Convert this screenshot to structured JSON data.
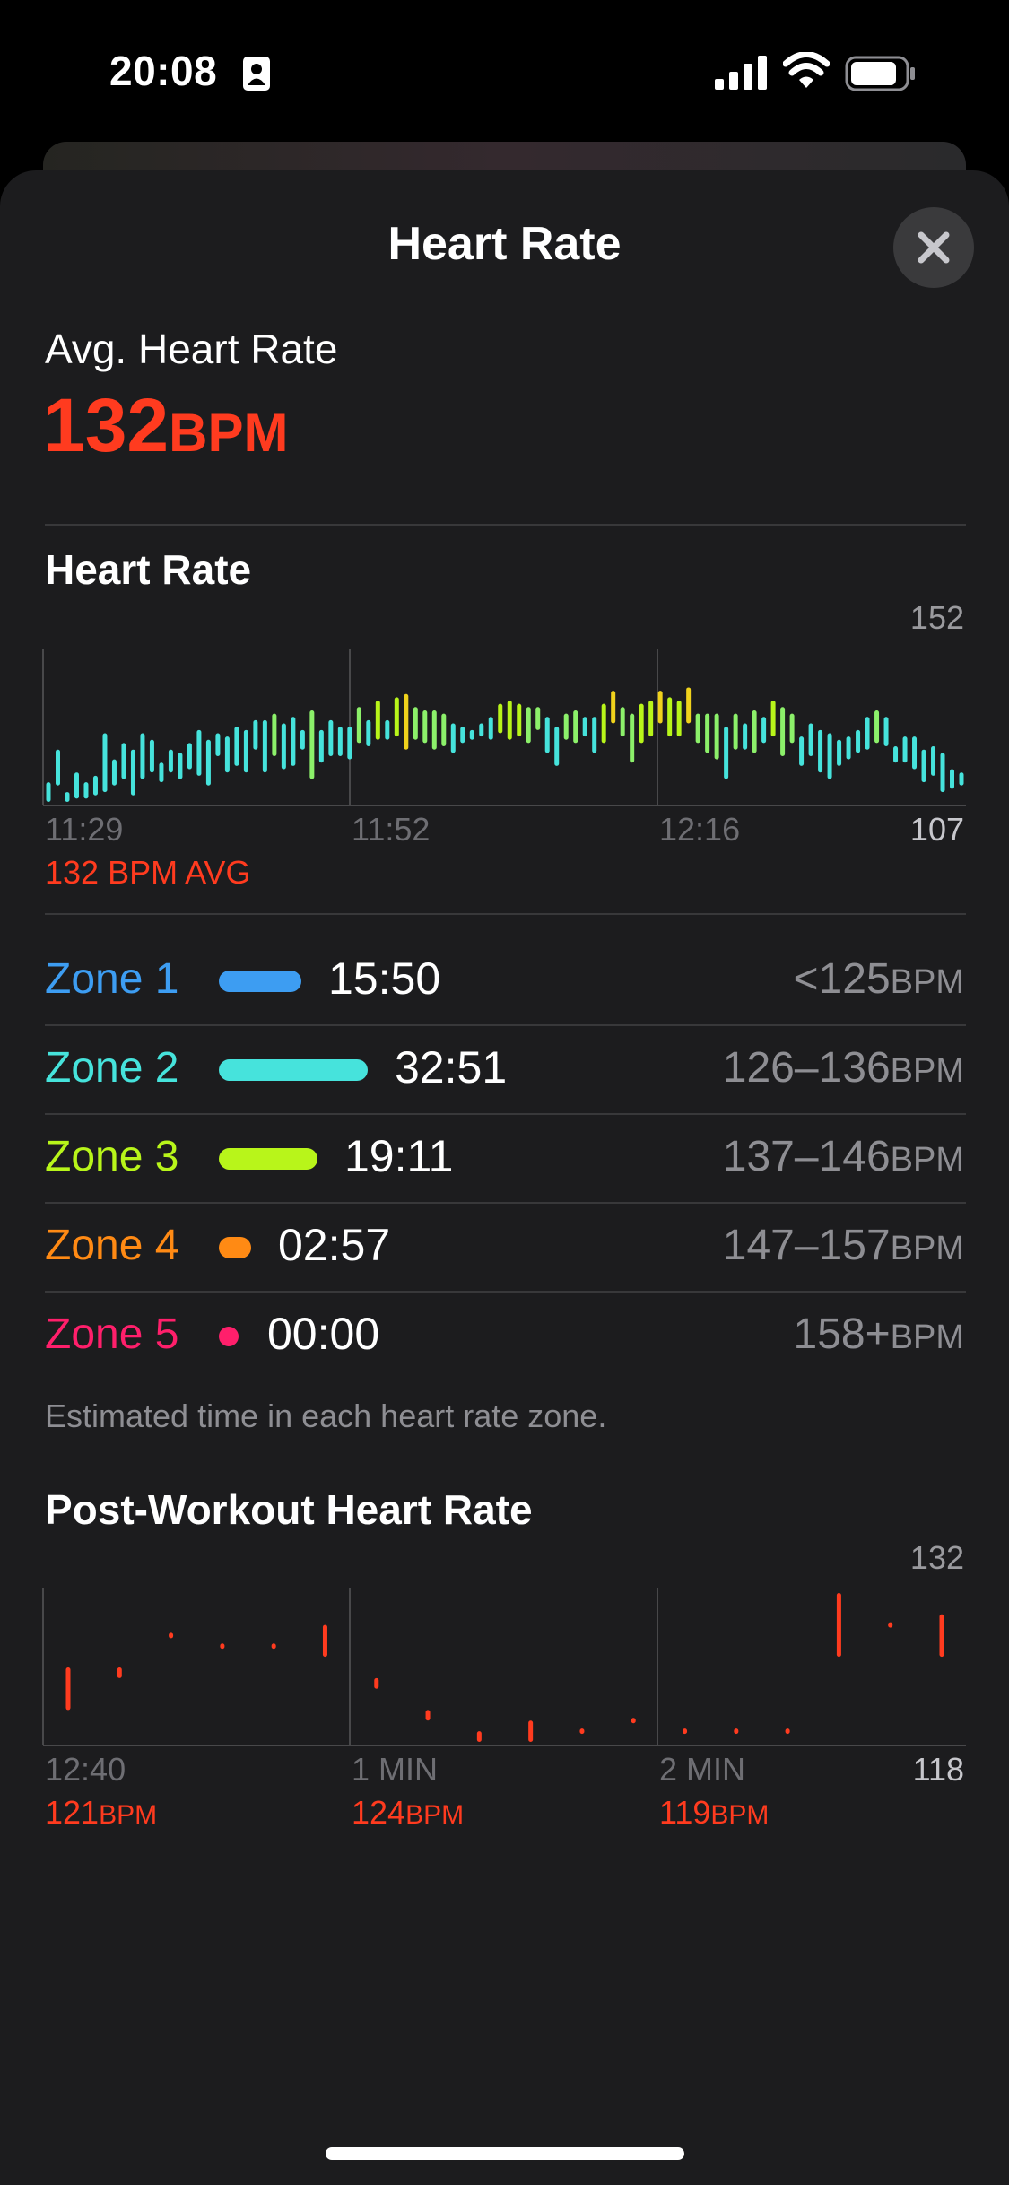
{
  "status_bar": {
    "time": "20:08"
  },
  "sheet": {
    "title": "Heart Rate"
  },
  "summary": {
    "label": "Avg. Heart Rate",
    "value": "132",
    "unit": "BPM"
  },
  "hr_chart": {
    "title": "Heart Rate",
    "y_max_label": "152",
    "y_min_label": "107",
    "x_labels": [
      "11:29",
      "11:52",
      "12:16"
    ],
    "avg_caption": "132 BPM AVG"
  },
  "zones": [
    {
      "name": "Zone 1",
      "time": "15:50",
      "range": "<125",
      "unit": "BPM",
      "color": "#3d9df2"
    },
    {
      "name": "Zone 2",
      "time": "32:51",
      "range": "126–136",
      "unit": "BPM",
      "color": "#46e3dc"
    },
    {
      "name": "Zone 3",
      "time": "19:11",
      "range": "137–146",
      "unit": "BPM",
      "color": "#b8f51a"
    },
    {
      "name": "Zone 4",
      "time": "02:57",
      "range": "147–157",
      "unit": "BPM",
      "color": "#ff8a14"
    },
    {
      "name": "Zone 5",
      "time": "00:00",
      "range": "158+",
      "unit": "BPM",
      "color": "#ff1f6b"
    }
  ],
  "zones_note": "Estimated time in each heart rate zone.",
  "post_chart": {
    "title": "Post-Workout Heart Rate",
    "y_max_label": "132",
    "y_min_label": "118",
    "x_labels": [
      "12:40",
      "1 MIN",
      "2 MIN"
    ],
    "minute_values": [
      {
        "value": "121",
        "unit": "BPM"
      },
      {
        "value": "124",
        "unit": "BPM"
      },
      {
        "value": "119",
        "unit": "BPM"
      }
    ]
  },
  "chart_data": [
    {
      "type": "bar",
      "title": "Heart Rate",
      "ylim": [
        107,
        152
      ],
      "x_labels": [
        "11:29",
        "11:52",
        "12:16"
      ],
      "series": [
        {
          "ranges": [
            [
              107,
              113
            ],
            [
              112,
              123
            ],
            [
              107,
              110
            ],
            [
              108,
              116
            ],
            [
              108,
              113
            ],
            [
              109,
              115
            ],
            [
              110,
              128
            ],
            [
              112,
              120
            ],
            [
              114,
              125
            ],
            [
              109,
              123
            ],
            [
              114,
              128
            ],
            [
              116,
              126
            ],
            [
              113,
              119
            ],
            [
              116,
              123
            ],
            [
              114,
              122
            ],
            [
              117,
              125
            ],
            [
              115,
              129
            ],
            [
              112,
              126
            ],
            [
              121,
              128
            ],
            [
              116,
              127
            ],
            [
              118,
              130
            ],
            [
              116,
              129
            ],
            [
              123,
              132
            ],
            [
              116,
              132
            ],
            [
              121,
              134
            ],
            [
              117,
              131
            ],
            [
              118,
              133
            ],
            [
              123,
              129
            ],
            [
              114,
              135
            ],
            [
              119,
              129
            ],
            [
              121,
              132
            ],
            [
              121,
              130
            ],
            [
              120,
              130
            ],
            [
              125,
              136
            ],
            [
              124,
              132
            ],
            [
              126,
              138
            ],
            [
              126,
              132
            ],
            [
              127,
              139
            ],
            [
              123,
              140
            ],
            [
              126,
              136
            ],
            [
              125,
              135
            ],
            [
              123,
              135
            ],
            [
              124,
              134
            ],
            [
              122,
              131
            ],
            [
              125,
              130
            ],
            [
              126,
              129
            ],
            [
              127,
              131
            ],
            [
              126,
              133
            ],
            [
              128,
              137
            ],
            [
              126,
              138
            ],
            [
              127,
              137
            ],
            [
              125,
              136
            ],
            [
              129,
              136
            ],
            [
              122,
              133
            ],
            [
              118,
              130
            ],
            [
              126,
              134
            ],
            [
              125,
              135
            ],
            [
              127,
              133
            ],
            [
              122,
              133
            ],
            [
              125,
              137
            ],
            [
              131,
              141
            ],
            [
              127,
              136
            ],
            [
              119,
              134
            ],
            [
              125,
              137
            ],
            [
              127,
              138
            ],
            [
              131,
              141
            ],
            [
              127,
              139
            ],
            [
              127,
              138
            ],
            [
              131,
              142
            ],
            [
              125,
              134
            ],
            [
              122,
              134
            ],
            [
              120,
              134
            ],
            [
              114,
              130
            ],
            [
              123,
              134
            ],
            [
              123,
              131
            ],
            [
              122,
              135
            ],
            [
              125,
              133
            ],
            [
              127,
              138
            ],
            [
              121,
              136
            ],
            [
              125,
              134
            ],
            [
              118,
              127
            ],
            [
              121,
              131
            ],
            [
              116,
              129
            ],
            [
              114,
              128
            ],
            [
              118,
              126
            ],
            [
              120,
              127
            ],
            [
              122,
              129
            ],
            [
              123,
              133
            ],
            [
              125,
              135
            ],
            [
              124,
              133
            ],
            [
              119,
              124
            ],
            [
              119,
              127
            ],
            [
              117,
              127
            ],
            [
              113,
              123
            ],
            [
              115,
              124
            ],
            [
              110,
              122
            ],
            [
              111,
              117
            ],
            [
              112,
              116
            ]
          ],
          "color_by_zone": true
        }
      ],
      "avg_label": "132 BPM AVG"
    },
    {
      "type": "bar",
      "title": "Post-Workout Heart Rate",
      "ylim": [
        118,
        132
      ],
      "x_labels": [
        "12:40",
        "1 MIN",
        "2 MIN"
      ],
      "series": [
        {
          "ranges": [
            [
              121,
              125
            ],
            [
              124,
              125
            ],
            [
              128,
              128
            ],
            [
              127,
              127
            ],
            [
              127,
              127
            ],
            [
              126,
              129
            ],
            [
              123,
              124
            ],
            [
              120,
              121
            ],
            [
              118,
              119
            ],
            [
              118,
              120
            ],
            [
              119,
              119
            ],
            [
              120,
              120
            ],
            [
              119,
              119
            ],
            [
              119,
              119
            ],
            [
              119,
              119
            ],
            [
              126,
              132
            ],
            [
              129,
              129
            ],
            [
              126,
              130
            ]
          ]
        }
      ],
      "minute_values": [
        121,
        124,
        119
      ]
    }
  ]
}
